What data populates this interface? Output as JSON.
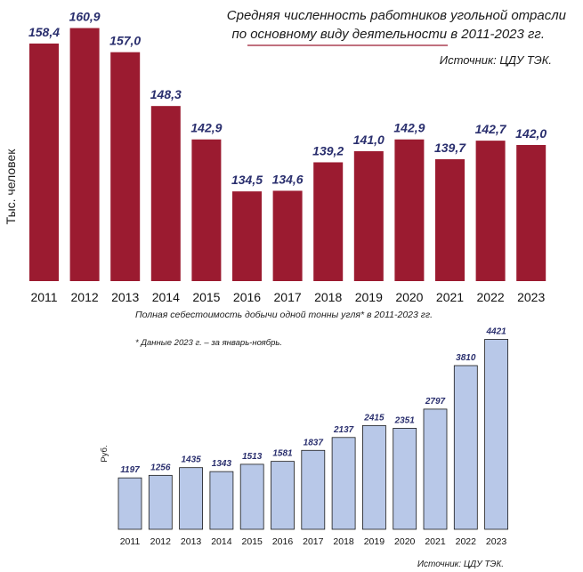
{
  "chart_data": [
    {
      "type": "bar",
      "title": "Средняя численность работников угольной отрасли по основному виду деятельности в 2011-2023 гг.",
      "title_lines": [
        "Средняя численность работников угольной отрасли",
        "по основному виду деятельности в 2011-2023 гг."
      ],
      "source": "Источник: ЦДУ ТЭК.",
      "ylabel": "Тыс. человек",
      "categories": [
        "2011",
        "2012",
        "2013",
        "2014",
        "2015",
        "2016",
        "2017",
        "2018",
        "2019",
        "2020",
        "2021",
        "2022",
        "2023"
      ],
      "values": [
        158.4,
        160.9,
        157.0,
        148.3,
        142.9,
        134.5,
        134.6,
        139.2,
        141.0,
        142.9,
        139.7,
        142.7,
        142.0
      ],
      "value_labels": [
        "158,4",
        "160,9",
        "157,0",
        "148,3",
        "142,9",
        "134,5",
        "134,6",
        "139,2",
        "141,0",
        "142,9",
        "139,7",
        "142,7",
        "142,0"
      ],
      "bar_color": "#9b1b30",
      "grid": false
    },
    {
      "type": "bar",
      "title": "Полная себестоимость добычи одной тонны угля* в 2011-2023 гг.",
      "note": "* Данные 2023 г. – за январь-ноябрь.",
      "source": "Источник: ЦДУ ТЭК.",
      "ylabel": "Руб.",
      "categories": [
        "2011",
        "2012",
        "2013",
        "2014",
        "2015",
        "2016",
        "2017",
        "2018",
        "2019",
        "2020",
        "2021",
        "2022",
        "2023"
      ],
      "values": [
        1197,
        1256,
        1435,
        1343,
        1513,
        1581,
        1837,
        2137,
        2415,
        2351,
        2797,
        3810,
        4421
      ],
      "value_labels": [
        "1197",
        "1256",
        "1435",
        "1343",
        "1513",
        "1581",
        "1837",
        "2137",
        "2415",
        "2351",
        "2797",
        "3810",
        "4421"
      ],
      "bar_color": "#b8c8e8",
      "bar_stroke": "#1a1a1a",
      "grid": false
    }
  ],
  "colors": {
    "title_underline": "#9b1b30",
    "value_labels": "#2a2f6e"
  }
}
